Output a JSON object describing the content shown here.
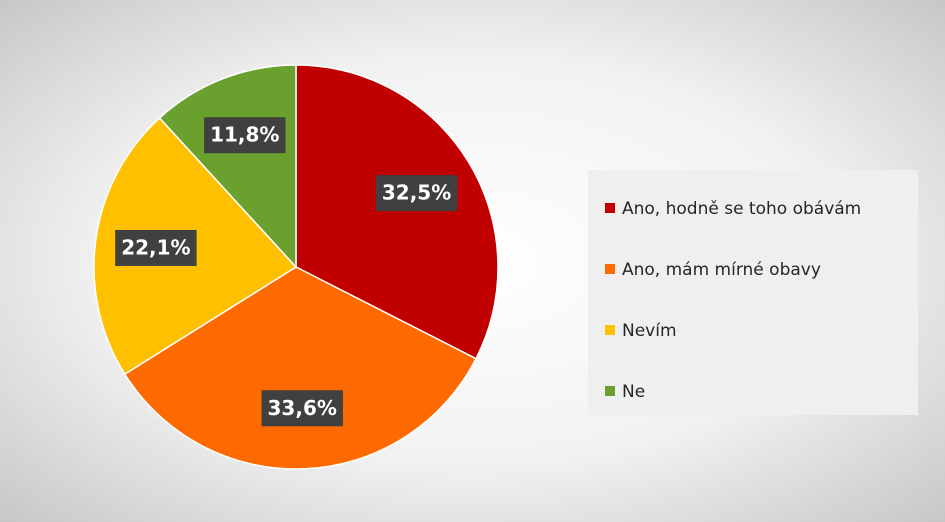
{
  "chart_data": {
    "type": "pie",
    "categories": [
      "Ano, hodně se toho obávám",
      "Ano, mám mírné obavy",
      "Nevím",
      "Ne"
    ],
    "values": [
      32.5,
      33.6,
      22.1,
      11.8
    ],
    "value_labels": [
      "32,5%",
      "33,6%",
      "22,1%",
      "11,8%"
    ],
    "colors": [
      "#c00000",
      "#ff6a00",
      "#ffc000",
      "#6aa12e"
    ],
    "legend": "right"
  }
}
